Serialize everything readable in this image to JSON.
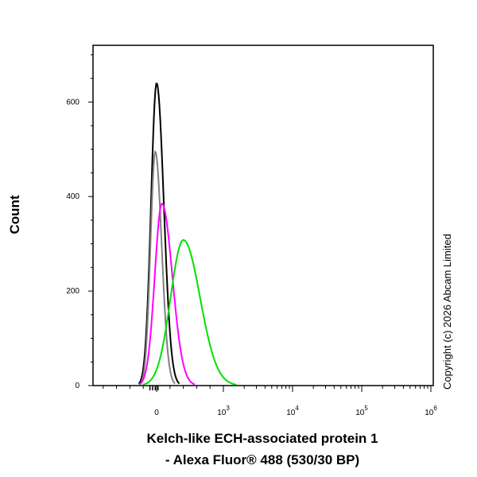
{
  "chart_data": {
    "type": "line",
    "title": "",
    "xlabel_line1": "Kelch-like ECH-associated protein 1",
    "xlabel_line2": "- Alexa Fluor® 488 (530/30 BP)",
    "ylabel": "Count",
    "x_scale": "biexponential",
    "ylim": [
      0,
      720
    ],
    "yticks": [
      0,
      200,
      400,
      600
    ],
    "xticks": [
      {
        "label": "0",
        "exp": ""
      },
      {
        "label": "10",
        "exp": "3"
      },
      {
        "label": "10",
        "exp": "4"
      },
      {
        "label": "10",
        "exp": "5"
      },
      {
        "label": "10",
        "exp": "6"
      }
    ],
    "grid": false,
    "series": [
      {
        "color": "#000000",
        "peak_x": 0,
        "peak_count": 640
      },
      {
        "color": "#808080",
        "peak_x": -20,
        "peak_count": 495
      },
      {
        "color": "#ff00ff",
        "peak_x": 80,
        "peak_count": 385
      },
      {
        "color": "#00e000",
        "peak_x": 400,
        "peak_count": 308
      }
    ]
  },
  "copyright": "Copyright (c) 2026 Abcam Limited"
}
